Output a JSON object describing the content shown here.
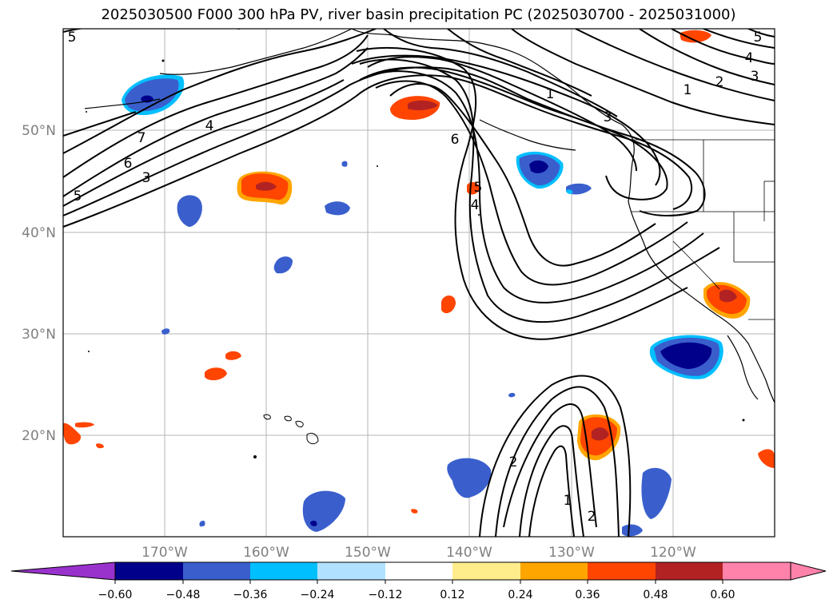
{
  "title": "2025030500 F000 300 hPa PV, river basin precipitation PC (2025030700 - 2025031000)",
  "lat_labels": [
    "50°N",
    "40°N",
    "30°N",
    "20°N"
  ],
  "lon_labels": [
    "170°W",
    "160°W",
    "150°W",
    "140°W",
    "130°W",
    "120°W"
  ],
  "contour_labels": [
    "5",
    "7",
    "6",
    "3",
    "5",
    "4",
    "6",
    "5",
    "4",
    "1",
    "2",
    "3",
    "4",
    "5",
    "1",
    "3",
    "2",
    "1",
    "2"
  ],
  "colorbar": {
    "ticks": [
      "−0.60",
      "−0.48",
      "−0.36",
      "−0.24",
      "−0.12",
      "0.12",
      "0.24",
      "0.36",
      "0.48",
      "0.60"
    ],
    "colors": [
      "#9932cc",
      "#00008b",
      "#3a5fcd",
      "#00bfff",
      "#b0e2ff",
      "#ffffff",
      "#ffec8b",
      "#ffa500",
      "#ff4500",
      "#b22222",
      "#ff82ab"
    ]
  },
  "colors": {
    "negative_strong": "#00008b",
    "negative_mid": "#3a5fcd",
    "negative_light": "#00bfff",
    "positive_light": "#ffa500",
    "positive_mid": "#ff4500",
    "positive_strong": "#b22222"
  }
}
